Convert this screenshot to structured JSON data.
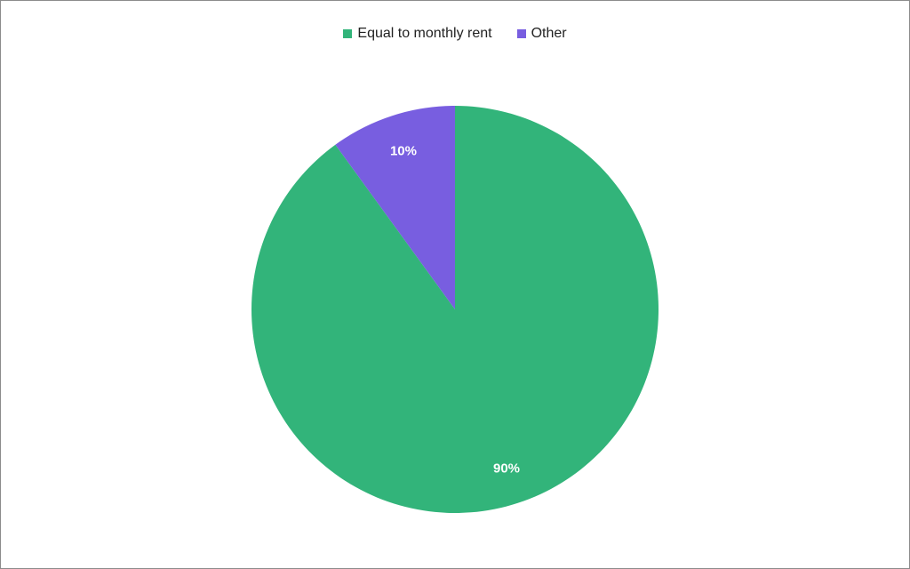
{
  "chart_data": {
    "type": "pie",
    "title": "",
    "legend_position": "top",
    "series": [
      {
        "name": "Equal to monthly rent",
        "value": 90,
        "label": "90%",
        "color": "#32B47A"
      },
      {
        "name": "Other",
        "value": 10,
        "label": "10%",
        "color": "#785EE0"
      }
    ]
  }
}
